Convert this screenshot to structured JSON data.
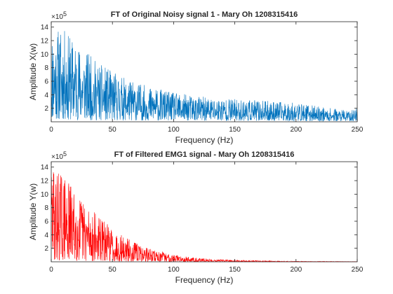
{
  "chart_data": [
    {
      "type": "line",
      "title": "FT of Original Noisy signal 1 - Mary Oh 1208315416",
      "xlabel": "Frequency (Hz)",
      "ylabel": "Amplitude X(w)",
      "y_multiplier_text": "×10",
      "y_multiplier_exp": "5",
      "xlim": [
        0,
        250
      ],
      "ylim": [
        0,
        14.8
      ],
      "y_scale": 100000,
      "xticks": [
        0,
        50,
        100,
        150,
        200,
        250
      ],
      "xtick_labels": [
        "0",
        "50",
        "100",
        "150",
        "200",
        "250"
      ],
      "yticks": [
        2,
        4,
        6,
        8,
        10,
        12,
        14
      ],
      "ytick_labels": [
        "2",
        "4",
        "6",
        "8",
        "10",
        "12",
        "14"
      ],
      "grid": false,
      "series": [
        {
          "color": "#0072BD",
          "style": "dense noisy spectrum",
          "envelope_x": [
            0,
            3,
            8,
            15,
            25,
            40,
            60,
            80,
            100,
            125,
            150,
            175,
            200,
            225,
            245,
            250
          ],
          "envelope_peak": [
            14.0,
            13.8,
            14.0,
            12.8,
            11.0,
            8.5,
            6.5,
            5.2,
            4.3,
            3.7,
            3.4,
            3.1,
            2.8,
            2.1,
            1.6,
            2.4
          ],
          "envelope_base": [
            0.3,
            0.3,
            0.3,
            0.25,
            0.25,
            0.2,
            0.2,
            0.2,
            0.2,
            0.15,
            0.15,
            0.15,
            0.1,
            0.1,
            0.1,
            0.1
          ]
        }
      ]
    },
    {
      "type": "line",
      "title": "FT of Filtered EMG1 signal - Mary Oh 1208315416",
      "xlabel": "Frequency (Hz)",
      "ylabel": "Amplitude Y(w)",
      "y_multiplier_text": "×10",
      "y_multiplier_exp": "5",
      "xlim": [
        0,
        250
      ],
      "ylim": [
        0,
        14.8
      ],
      "y_scale": 100000,
      "xticks": [
        0,
        50,
        100,
        150,
        200,
        250
      ],
      "xtick_labels": [
        "0",
        "50",
        "100",
        "150",
        "200",
        "250"
      ],
      "yticks": [
        2,
        4,
        6,
        8,
        10,
        12,
        14
      ],
      "ytick_labels": [
        "2",
        "4",
        "6",
        "8",
        "10",
        "12",
        "14"
      ],
      "grid": false,
      "series": [
        {
          "color": "#FF0000",
          "style": "dense noisy spectrum, low-pass filtered",
          "envelope_x": [
            0,
            3,
            8,
            15,
            25,
            35,
            50,
            65,
            80,
            100,
            120,
            150,
            200,
            250
          ],
          "envelope_peak": [
            14.2,
            14.0,
            13.5,
            11.8,
            9.5,
            7.5,
            5.0,
            3.2,
            2.0,
            1.1,
            0.55,
            0.25,
            0.08,
            0.04
          ],
          "envelope_base": [
            0.2,
            0.2,
            0.2,
            0.15,
            0.12,
            0.1,
            0.08,
            0.05,
            0.04,
            0.02,
            0.01,
            0.01,
            0.0,
            0.0
          ]
        }
      ]
    }
  ]
}
